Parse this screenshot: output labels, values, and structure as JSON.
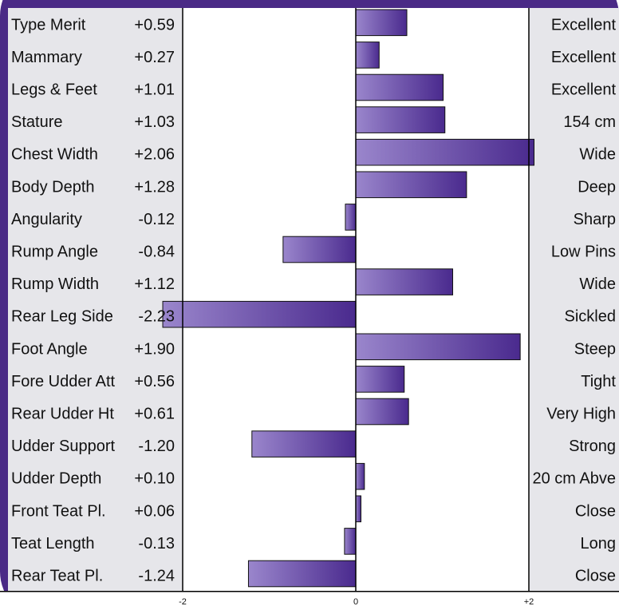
{
  "colors": {
    "frame": "#4a2a86",
    "panel": "#e6e6ea",
    "bar_light": "#9a86cc",
    "bar_dark": "#4a2a8e"
  },
  "chart_data": {
    "type": "bar",
    "orientation": "horizontal",
    "xlim": [
      -2.3,
      2.3
    ],
    "x_ticks": [
      "-2",
      "0",
      "+2"
    ],
    "rows": [
      {
        "trait": "Type Merit",
        "value": 0.59,
        "value_label": "+0.59",
        "description": "Excellent"
      },
      {
        "trait": "Mammary",
        "value": 0.27,
        "value_label": "+0.27",
        "description": "Excellent"
      },
      {
        "trait": "Legs & Feet",
        "value": 1.01,
        "value_label": "+1.01",
        "description": "Excellent"
      },
      {
        "trait": "Stature",
        "value": 1.03,
        "value_label": "+1.03",
        "description": "154 cm"
      },
      {
        "trait": "Chest Width",
        "value": 2.06,
        "value_label": "+2.06",
        "description": "Wide"
      },
      {
        "trait": "Body Depth",
        "value": 1.28,
        "value_label": "+1.28",
        "description": "Deep"
      },
      {
        "trait": "Angularity",
        "value": -0.12,
        "value_label": "-0.12",
        "description": "Sharp"
      },
      {
        "trait": "Rump Angle",
        "value": -0.84,
        "value_label": "-0.84",
        "description": "Low Pins"
      },
      {
        "trait": "Rump Width",
        "value": 1.12,
        "value_label": "+1.12",
        "description": "Wide"
      },
      {
        "trait": "Rear Leg Side",
        "value": -2.23,
        "value_label": "-2.23",
        "description": "Sickled"
      },
      {
        "trait": "Foot Angle",
        "value": 1.9,
        "value_label": "+1.90",
        "description": "Steep"
      },
      {
        "trait": "Fore Udder Att",
        "value": 0.56,
        "value_label": "+0.56",
        "description": "Tight"
      },
      {
        "trait": "Rear Udder Ht",
        "value": 0.61,
        "value_label": "+0.61",
        "description": "Very High"
      },
      {
        "trait": "Udder Support",
        "value": -1.2,
        "value_label": "-1.20",
        "description": "Strong"
      },
      {
        "trait": "Udder Depth",
        "value": 0.1,
        "value_label": "+0.10",
        "description": "20 cm Abve"
      },
      {
        "trait": "Front Teat Pl.",
        "value": 0.06,
        "value_label": "+0.06",
        "description": "Close"
      },
      {
        "trait": "Teat Length",
        "value": -0.13,
        "value_label": "-0.13",
        "description": "Long"
      },
      {
        "trait": "Rear Teat Pl.",
        "value": -1.24,
        "value_label": "-1.24",
        "description": "Close"
      }
    ]
  }
}
